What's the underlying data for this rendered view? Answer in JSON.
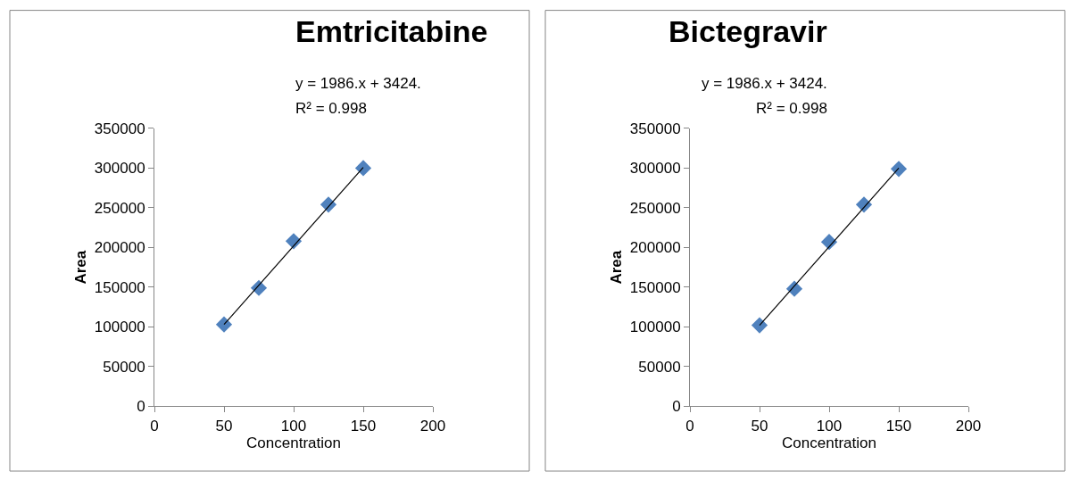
{
  "chart_data": [
    {
      "type": "scatter",
      "title": "Emtricitabine",
      "xlabel": "Concentration",
      "ylabel": "Area",
      "marker": "diamond",
      "xlim": [
        0,
        200
      ],
      "xticks": [
        0,
        50,
        100,
        150,
        200
      ],
      "ylim": [
        0,
        350000
      ],
      "yticks": [
        0,
        50000,
        100000,
        150000,
        200000,
        250000,
        300000,
        350000
      ],
      "series": [
        {
          "color": "#4f81bd",
          "x": [
            50,
            75,
            100,
            125,
            150
          ],
          "values": [
            103000,
            149000,
            208000,
            254000,
            300000
          ]
        },
        {
          "type": "line",
          "color": "#000000",
          "marker": "none",
          "x": [
            50,
            150
          ],
          "values": [
            103000,
            301000
          ]
        }
      ],
      "annotations": [
        "y = 1986.x + 3424.",
        "R² = 0.998"
      ]
    },
    {
      "type": "scatter",
      "title": "Bictegravir",
      "xlabel": "Concentration",
      "ylabel": "Area",
      "marker": "diamond",
      "xlim": [
        0,
        200
      ],
      "xticks": [
        0,
        50,
        100,
        150,
        200
      ],
      "ylim": [
        0,
        350000
      ],
      "yticks": [
        0,
        50000,
        100000,
        150000,
        200000,
        250000,
        300000,
        350000
      ],
      "series": [
        {
          "color": "#4f81bd",
          "x": [
            50,
            75,
            100,
            125,
            150
          ],
          "values": [
            102000,
            148000,
            207000,
            254000,
            299000
          ]
        },
        {
          "type": "line",
          "color": "#000000",
          "marker": "none",
          "x": [
            50,
            150
          ],
          "values": [
            102000,
            300000
          ]
        }
      ],
      "annotations": [
        "y = 1986.x + 3424.",
        "R² = 0.998"
      ]
    }
  ]
}
